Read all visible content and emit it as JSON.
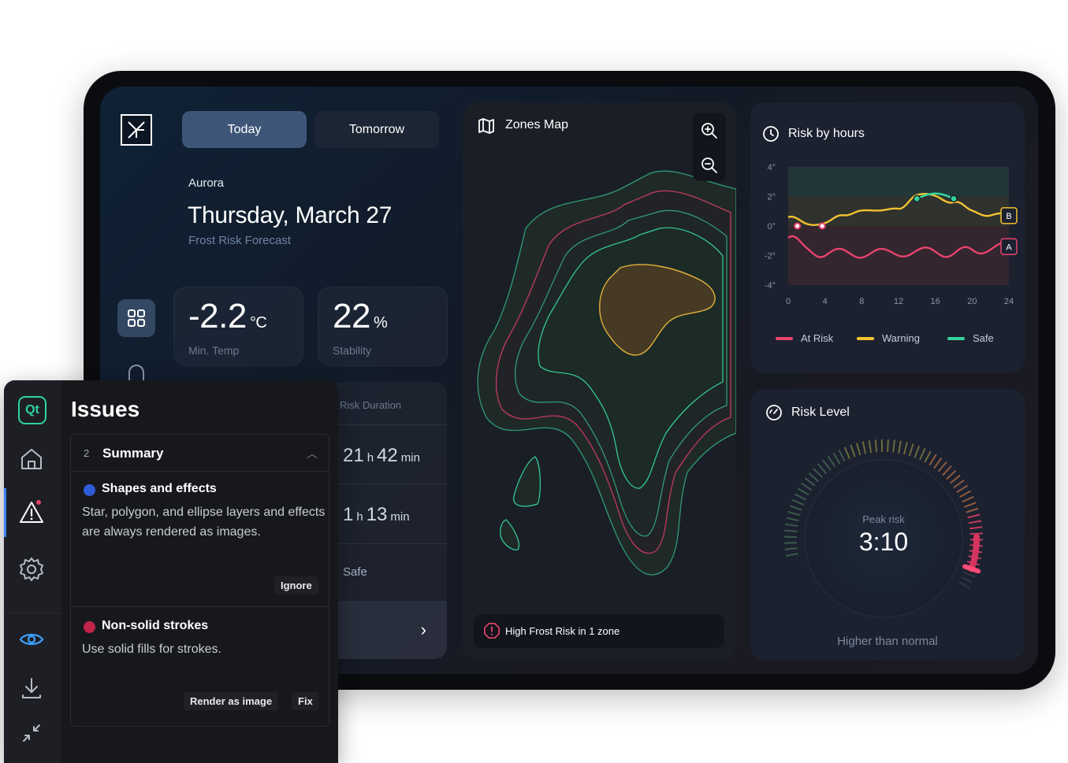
{
  "app": {
    "tabs": [
      "Today",
      "Tomorrow"
    ],
    "location": "Aurora",
    "date": "Thursday, March 27",
    "subtitle": "Frost Risk Forecast"
  },
  "stats": {
    "min_temp": {
      "value": "-2.2",
      "unit": "°C",
      "label": "Min. Temp"
    },
    "stability": {
      "value": "22",
      "unit": "%",
      "label": "Stability"
    }
  },
  "risk_duration": {
    "label": "Risk Duration",
    "rows": [
      {
        "h": "21",
        "h_unit": "h",
        "m": "42",
        "m_unit": "min"
      },
      {
        "h": "1",
        "h_unit": "h",
        "m": "13",
        "m_unit": "min"
      }
    ],
    "safe_label": "Safe"
  },
  "zones_map": {
    "title": "Zones Map",
    "alert": "High Frost Risk in 1 zone"
  },
  "risk_by_hours": {
    "title": "Risk by hours",
    "legend": [
      "At Risk",
      "Warning",
      "Safe"
    ],
    "markers": [
      "B",
      "A"
    ],
    "colors": {
      "at_risk": "#e8436c",
      "warning": "#f2c230",
      "safe": "#35d39b"
    }
  },
  "chart_data": {
    "type": "line",
    "x": [
      0,
      2,
      4,
      6,
      8,
      10,
      12,
      14,
      16,
      18,
      20,
      22,
      24
    ],
    "xticks": [
      "0",
      "4",
      "8",
      "12",
      "16",
      "20",
      "24"
    ],
    "yticks": [
      "4°",
      "2°",
      "0°",
      "-2°",
      "-4°"
    ],
    "ylim": [
      -4,
      4
    ],
    "xlim": [
      0,
      24
    ],
    "series": [
      {
        "name": "Warning",
        "values": [
          0.6,
          0.1,
          0.3,
          0.6,
          1.2,
          0.9,
          1.3,
          2.0,
          2.1,
          1.6,
          1.0,
          0.8,
          0.7
        ]
      },
      {
        "name": "At Risk",
        "values": [
          -0.8,
          -1.6,
          -1.8,
          -1.9,
          -1.8,
          -1.9,
          -1.7,
          -1.9,
          -1.6,
          -1.9,
          -1.7,
          -1.4,
          -1.5
        ]
      }
    ]
  },
  "risk_level": {
    "title": "Risk Level",
    "peak_label": "Peak risk",
    "peak_value": "3:10",
    "status": "Higher than normal",
    "level": 0.95
  },
  "issues": {
    "title": "Issues",
    "summary_count": "2",
    "summary_title": "Summary",
    "items": [
      {
        "title": "Shapes and effects",
        "text": "Star, polygon, and ellipse layers and effects are always rendered as images.",
        "actions": [
          "Ignore"
        ],
        "severity_color": "#2f5bd6"
      },
      {
        "title": "Non-solid strokes",
        "text": "Use solid fills for strokes.",
        "actions": [
          "Render as image",
          "Fix"
        ],
        "severity_color": "#c0264a"
      }
    ],
    "qt_label": "Qt"
  }
}
